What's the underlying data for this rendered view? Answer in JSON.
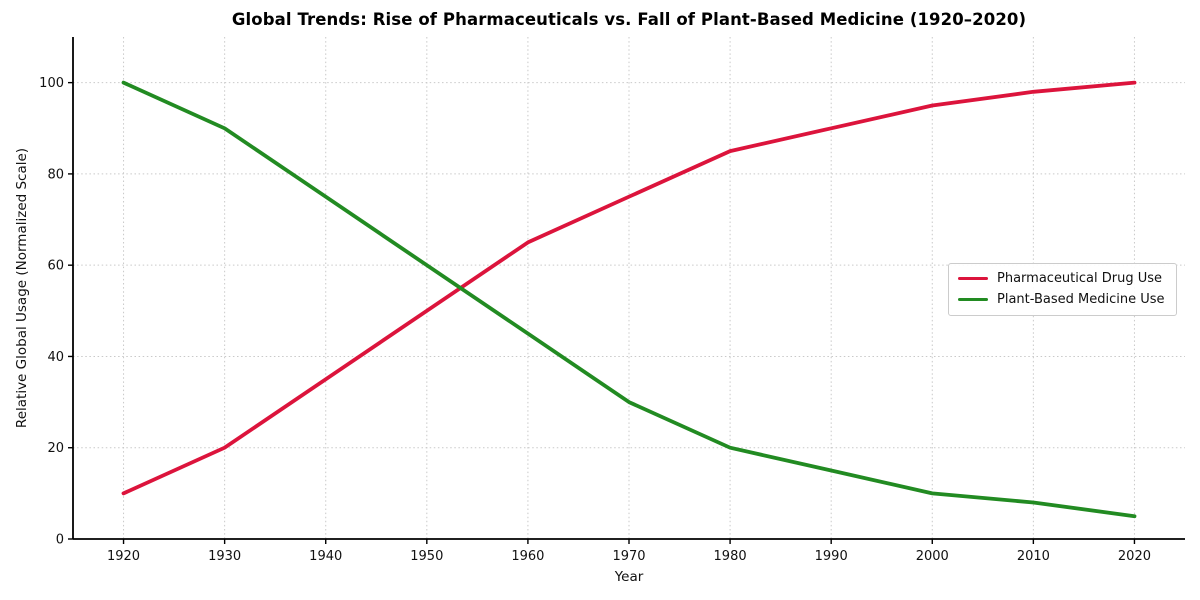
{
  "chart_data": {
    "type": "line",
    "title": "Global Trends: Rise of Pharmaceuticals vs. Fall of Plant-Based Medicine (1920–2020)",
    "xlabel": "Year",
    "ylabel": "Relative Global Usage (Normalized Scale)",
    "x": [
      1920,
      1930,
      1940,
      1950,
      1960,
      1970,
      1980,
      1990,
      2000,
      2010,
      2020
    ],
    "series": [
      {
        "name": "Pharmaceutical Drug Use",
        "color": "#DC143C",
        "values": [
          10,
          20,
          35,
          50,
          65,
          75,
          85,
          90,
          95,
          98,
          100
        ]
      },
      {
        "name": "Plant-Based Medicine Use",
        "color": "#228B22",
        "values": [
          100,
          90,
          75,
          60,
          45,
          30,
          20,
          15,
          10,
          8,
          5
        ]
      }
    ],
    "xlim": [
      1915,
      2025
    ],
    "ylim": [
      0,
      110
    ],
    "xticks": [
      1920,
      1930,
      1940,
      1950,
      1960,
      1970,
      1980,
      1990,
      2000,
      2010,
      2020
    ],
    "yticks": [
      0,
      20,
      40,
      60,
      80,
      100
    ],
    "grid": true,
    "grid_style": "dotted",
    "legend_position": "center-right",
    "spines": [
      "left",
      "bottom"
    ]
  }
}
